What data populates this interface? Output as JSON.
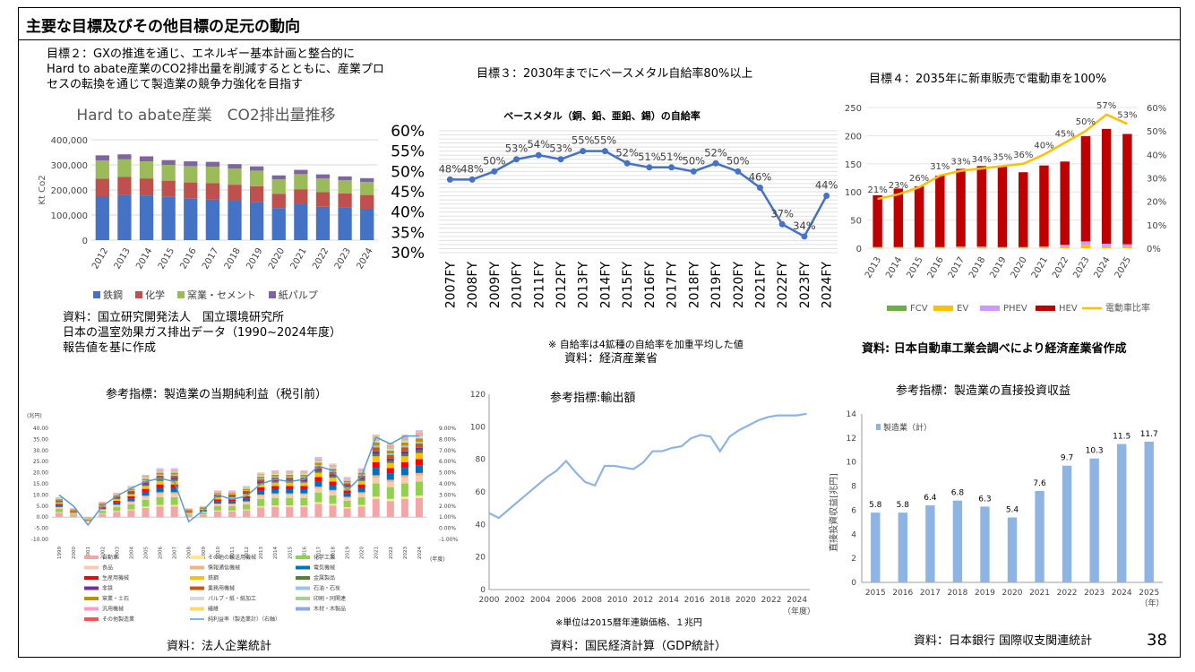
{
  "page": {
    "title": "主要な目標及びその他目標の足元の動向",
    "page_number": "38"
  },
  "goal2": {
    "lines": [
      "目標２：GXの推進を通じ、エネルギー基本計画と整合的に",
      "Hard to abate産業のCO2排出量を削減するとともに、産業プロ",
      "セスの転換を通じて製造業の競争力強化を目指す"
    ],
    "source": [
      "資料：国立研究開発法人　国立環境研究所",
      "日本の温室効果ガス排出データ（1990~2024年度）",
      "報告値を基に作成"
    ]
  },
  "goal3": {
    "label": "目標３：2030年までにベースメタル自給率80%以上",
    "note": "※ 自給率は4鉱種の自給率を加重平均した値",
    "source": "資料：経済産業省"
  },
  "goal4": {
    "label": "目標４：2035年に新車販売で電動車を100%",
    "source": "資料: 日本自動車工業会調べにより経済産業省作成"
  },
  "ref1": {
    "label": "参考指標：製造業の当期純利益（税引前）",
    "source": "資料：法人企業統計"
  },
  "ref2": {
    "label": "参考指標:輸出額",
    "note": "※単位は2015暦年連鎖価格、１兆円",
    "source": "資料：国民経済計算（GDP統計）"
  },
  "ref3": {
    "label": "参考指標：製造業の直接投資収益",
    "source": "資料：日本銀行 国際収支関連統計"
  },
  "chart_data": [
    {
      "id": "co2",
      "type": "bar",
      "stacked": true,
      "title": "Hard to abate産業　CO2排出量推移",
      "ylabel": "Kt Co2",
      "ylim": [
        0,
        400000
      ],
      "yticks": [
        "0",
        "100,000",
        "200,000",
        "300,000",
        "400,000"
      ],
      "categories": [
        "2012",
        "2013",
        "2014",
        "2015",
        "2016",
        "2017",
        "2018",
        "2019",
        "2020",
        "2021",
        "2022",
        "2023",
        "2024"
      ],
      "series": [
        {
          "name": "鉄鋼",
          "color": "#4472C4",
          "values": [
            175000,
            180000,
            178000,
            172000,
            165000,
            162000,
            157000,
            153000,
            128000,
            143000,
            133000,
            130000,
            125000
          ]
        },
        {
          "name": "化学",
          "color": "#C0504D",
          "values": [
            70000,
            72000,
            68000,
            65000,
            65000,
            65000,
            64000,
            62000,
            57000,
            60000,
            58000,
            56000,
            55000
          ]
        },
        {
          "name": "窯業・セメント",
          "color": "#9BBB59",
          "values": [
            73000,
            70000,
            68000,
            63000,
            65000,
            66000,
            64000,
            62000,
            57000,
            60000,
            55000,
            53000,
            52000
          ]
        },
        {
          "name": "紙パルプ",
          "color": "#8064A2",
          "values": [
            20000,
            20000,
            20000,
            19000,
            19000,
            19000,
            18000,
            17000,
            16000,
            17000,
            16000,
            15000,
            15000
          ]
        }
      ]
    },
    {
      "id": "metal",
      "type": "line",
      "title": "ベースメタル（銅、鉛、亜鉛、錫）の自給率",
      "ylim": [
        30,
        60
      ],
      "yticks": [
        "30%",
        "35%",
        "40%",
        "45%",
        "50%",
        "55%",
        "60%"
      ],
      "categories": [
        "2007FY",
        "2008FY",
        "2009FY",
        "2010FY",
        "2011FY",
        "2012FY",
        "2013FY",
        "2014FY",
        "2015FY",
        "2016FY",
        "2017FY",
        "2018FY",
        "2019FY",
        "2020FY",
        "2021FY",
        "2022FY",
        "2023FY",
        "2024FY"
      ],
      "values": [
        48,
        48,
        50,
        53,
        54,
        53,
        55,
        55,
        52,
        51,
        51,
        50,
        52,
        50,
        46,
        37,
        34,
        44
      ],
      "labels": [
        "48%",
        "48%",
        "50%",
        "53%",
        "54%",
        "53%",
        "55%",
        "55%",
        "52%",
        "51%",
        "51%",
        "50%",
        "52%",
        "50%",
        "46%",
        "37%",
        "34%",
        "44%"
      ],
      "color": "#4472C4"
    },
    {
      "id": "ev",
      "type": "bar",
      "stacked": true,
      "ylim": [
        0,
        250
      ],
      "yticks": [
        "0",
        "50",
        "100",
        "150",
        "200",
        "250"
      ],
      "y2lim": [
        0,
        60
      ],
      "y2ticks": [
        "0%",
        "10%",
        "20%",
        "30%",
        "40%",
        "50%",
        "60%"
      ],
      "categories": [
        "2013",
        "2014",
        "2015",
        "2016",
        "2017",
        "2018",
        "2019",
        "2020",
        "2021",
        "2022",
        "2023",
        "2024",
        "2025"
      ],
      "series": [
        {
          "name": "FCV",
          "color": "#70AD47",
          "values": [
            0,
            0,
            0,
            0,
            0,
            0,
            0,
            0,
            0,
            0,
            0,
            0,
            0
          ]
        },
        {
          "name": "EV",
          "color": "#FFC000",
          "values": [
            1,
            1,
            1,
            1,
            1,
            1,
            1,
            1,
            1,
            2,
            6,
            3,
            2
          ]
        },
        {
          "name": "PHEV",
          "color": "#CC99FF",
          "values": [
            1,
            1,
            1,
            1,
            2,
            2,
            1,
            1,
            2,
            4,
            6,
            5,
            5
          ]
        },
        {
          "name": "HEV",
          "color": "#C00000",
          "values": [
            92,
            104,
            108,
            127,
            138,
            143,
            145,
            133,
            144,
            148,
            187,
            204,
            196
          ]
        }
      ],
      "ratio_series": {
        "name": "電動車比率",
        "color": "#FFC000",
        "values": [
          21,
          23,
          26,
          31,
          33,
          34,
          35,
          36,
          40,
          45,
          50,
          57,
          53
        ],
        "labels": [
          "21%",
          "23%",
          "26%",
          "31%",
          "33%",
          "34%",
          "35%",
          "36%",
          "40%",
          "45%",
          "50%",
          "57%",
          "53%"
        ]
      }
    },
    {
      "id": "profit",
      "type": "bar",
      "stacked": true,
      "ylabel": "(兆円)",
      "ylim": [
        -10,
        40
      ],
      "yticks": [
        "-10.00",
        "-5.00",
        "0.00",
        "5.00",
        "10.00",
        "15.00",
        "20.00",
        "25.00",
        "30.00",
        "35.00",
        "40.00"
      ],
      "y2ticks": [
        "-1.00%",
        "0.00%",
        "1.00%",
        "2.00%",
        "3.00%",
        "4.00%",
        "5.00%",
        "6.00%",
        "7.00%",
        "8.00%",
        "9.00%"
      ],
      "xlabel": "(年度)",
      "categories": [
        "1999",
        "2000",
        "2001",
        "2002",
        "2003",
        "2004",
        "2005",
        "2006",
        "2007",
        "2008",
        "2009",
        "2010",
        "2011",
        "2012",
        "2013",
        "2014",
        "2015",
        "2016",
        "2017",
        "2018",
        "2019",
        "2020",
        "2021",
        "2022",
        "2023",
        "2024"
      ],
      "legend": [
        "自動車",
        "その他の輸送用機械",
        "化学工業",
        "食品",
        "情報通信機械",
        "電気機械",
        "生産用機械",
        "鉄鋼",
        "金属製品",
        "非鉄",
        "業務用機械",
        "石油・石炭",
        "窯業・土石",
        "パルプ・紙・紙加工",
        "印刷・同関連",
        "汎用機械",
        "繊維",
        "木材・木製品",
        "その他製造業",
        "純利益率（製造業計）（右軸）"
      ],
      "colors": [
        "#F4A6A6",
        "#FFE699",
        "#92D050",
        "#F8CBAD",
        "#F4B183",
        "#0070C0",
        "#FF0000",
        "#FFC000",
        "#548235",
        "#7030A0",
        "#C65911",
        "#9DC3E6",
        "#BF9000",
        "#D9D9D9",
        "#A9D18E",
        "#FF99CC",
        "#FFD966",
        "#8FAADC",
        "#FF5050",
        "#5B9BD5"
      ],
      "totals": [
        9,
        4,
        -2,
        7,
        11,
        14,
        19,
        22,
        22,
        4,
        5,
        12,
        12,
        14,
        20,
        21,
        21,
        21,
        27,
        24,
        18,
        22,
        37,
        33,
        37,
        39
      ],
      "ratio_values": [
        3.0,
        2.0,
        0.3,
        2.0,
        2.9,
        3.6,
        4.2,
        4.5,
        4.2,
        0.6,
        1.6,
        3.0,
        2.6,
        2.9,
        4.0,
        4.4,
        4.2,
        4.4,
        5.6,
        5.2,
        3.4,
        4.7,
        8.2,
        7.6,
        8.3,
        8.3
      ]
    },
    {
      "id": "export",
      "type": "line",
      "ylim": [
        0,
        120
      ],
      "yticks": [
        "0",
        "20",
        "40",
        "60",
        "80",
        "100",
        "120"
      ],
      "xticks": [
        "2000",
        "2002",
        "2004",
        "2006",
        "2008",
        "2010",
        "2012",
        "2014",
        "2016",
        "2018",
        "2020",
        "2022",
        "2024"
      ],
      "xlabel": "（年度）",
      "x": [
        2000,
        2000.75,
        2001.5,
        2002.25,
        2003,
        2003.75,
        2004.5,
        2005.25,
        2006,
        2006.75,
        2007.5,
        2008.25,
        2009,
        2009.75,
        2010.5,
        2011.25,
        2012,
        2012.75,
        2013.5,
        2014.25,
        2015,
        2015.75,
        2016.5,
        2017.25,
        2018,
        2018.75,
        2019.5,
        2020.25,
        2021,
        2021.75,
        2022.5,
        2023.25,
        2024,
        2024.75
      ],
      "values": [
        47,
        44,
        49,
        54,
        59,
        64,
        69,
        73,
        79,
        72,
        66,
        64,
        76,
        76,
        75,
        74,
        78,
        85,
        85,
        87,
        88,
        93,
        95,
        94,
        85,
        94,
        98,
        101,
        104,
        106,
        107,
        107,
        107,
        108
      ],
      "color": "#8DB4E2"
    },
    {
      "id": "fdi",
      "type": "bar",
      "ylabel": "直接投資収益[兆円]",
      "xlabel": "（年）",
      "ylim": [
        0,
        14
      ],
      "yticks": [
        "0",
        "2",
        "4",
        "6",
        "8",
        "10",
        "12",
        "14"
      ],
      "series_name": "製造業（計）",
      "categories": [
        "2015",
        "2016",
        "2017",
        "2018",
        "2019",
        "2020",
        "2021",
        "2022",
        "2023",
        "2024",
        "2025"
      ],
      "values": [
        5.8,
        5.8,
        6.4,
        6.8,
        6.3,
        5.4,
        7.6,
        9.7,
        10.3,
        11.5,
        11.7
      ],
      "labels": [
        "5.8",
        "5.8",
        "6.4",
        "6.8",
        "6.3",
        "5.4",
        "7.6",
        "9.7",
        "10.3",
        "11.5",
        "11.7"
      ],
      "color": "#8DB4E2"
    }
  ]
}
